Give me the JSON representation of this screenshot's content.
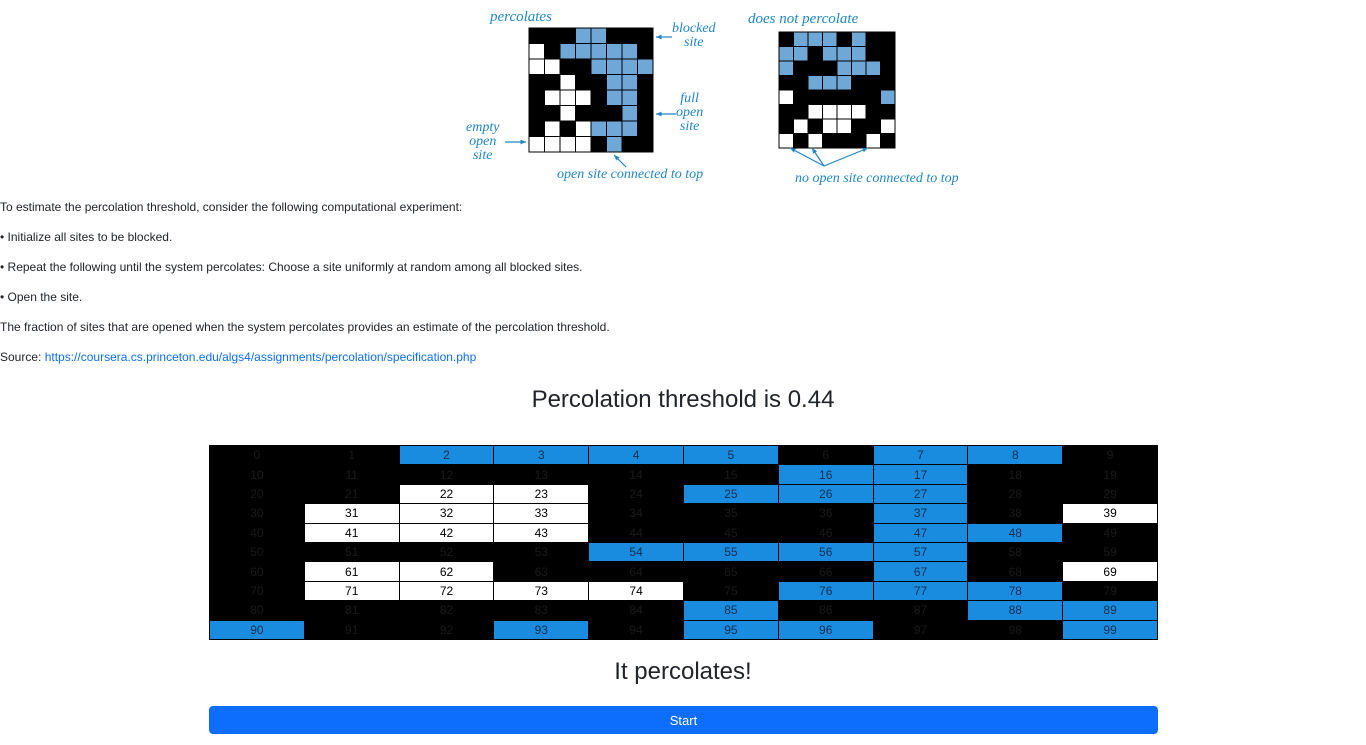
{
  "figure": {
    "left_title": "percolates",
    "right_title": "does not percolate",
    "blocked_site": "blocked\nsite",
    "full_open_site": "full\nopen\nsite",
    "empty_open_site": "empty\nopen\nsite",
    "open_connected": "open site connected to top",
    "no_open_connected": "no open site connected to top",
    "left_grid": [
      "BBBFFBBB",
      "OBFFFFFB",
      "OOBBFFFF",
      "BBOBBFFB",
      "BOOOBFFB",
      "BBOBBBFB",
      "BOBOFFFB",
      "OOOOBFBB"
    ],
    "right_grid": [
      "BFFFBFBB",
      "FFBFFFBB",
      "FBBBFFFB",
      "BBFFFBBB",
      "OBBBBBBF",
      "BBOOOOBB",
      "BOBOOBBO",
      "OBOBBBOB"
    ],
    "colors": {
      "blue": "#1f86c8",
      "cell_blue": "#6fa8d6"
    }
  },
  "intro": {
    "line1": "To estimate the percolation threshold, consider the following computational experiment:",
    "line2": "• Initialize all sites to be blocked.",
    "line3": "• Repeat the following until the system percolates: Choose a site uniformly at random among all blocked sites.",
    "line4": "• Open the site.",
    "line5": "The fraction of sites that are opened when the system percolates provides an estimate of the percolation threshold.",
    "source_label": "Source: ",
    "source_link": "https://coursera.cs.princeton.edu/algs4/assignments/percolation/specification.php"
  },
  "threshold_text": "Percolation threshold is 0.44",
  "grid": {
    "rows": [
      [
        "B",
        "B",
        "F",
        "F",
        "F",
        "F",
        "B",
        "F",
        "F",
        "B"
      ],
      [
        "B",
        "B",
        "B",
        "B",
        "B",
        "B",
        "F",
        "F",
        "B",
        "B"
      ],
      [
        "B",
        "B",
        "O",
        "O",
        "B",
        "F",
        "F",
        "F",
        "B",
        "B"
      ],
      [
        "B",
        "O",
        "O",
        "O",
        "B",
        "B",
        "B",
        "F",
        "B",
        "O"
      ],
      [
        "B",
        "O",
        "O",
        "O",
        "B",
        "B",
        "B",
        "F",
        "F",
        "B"
      ],
      [
        "B",
        "B",
        "B",
        "B",
        "F",
        "F",
        "F",
        "F",
        "B",
        "B"
      ],
      [
        "B",
        "O",
        "O",
        "B",
        "B",
        "B",
        "B",
        "F",
        "B",
        "O"
      ],
      [
        "B",
        "O",
        "O",
        "O",
        "O",
        "B",
        "F",
        "F",
        "F",
        "B"
      ],
      [
        "B",
        "B",
        "B",
        "B",
        "B",
        "F",
        "B",
        "B",
        "F",
        "F"
      ],
      [
        "F",
        "B",
        "B",
        "F",
        "B",
        "F",
        "F",
        "B",
        "B",
        "F"
      ]
    ],
    "colors": {
      "blocked": "#000000",
      "open": "#ffffff",
      "full": "#1a8cdf"
    }
  },
  "status_text": "It percolates!",
  "start_button": "Start"
}
